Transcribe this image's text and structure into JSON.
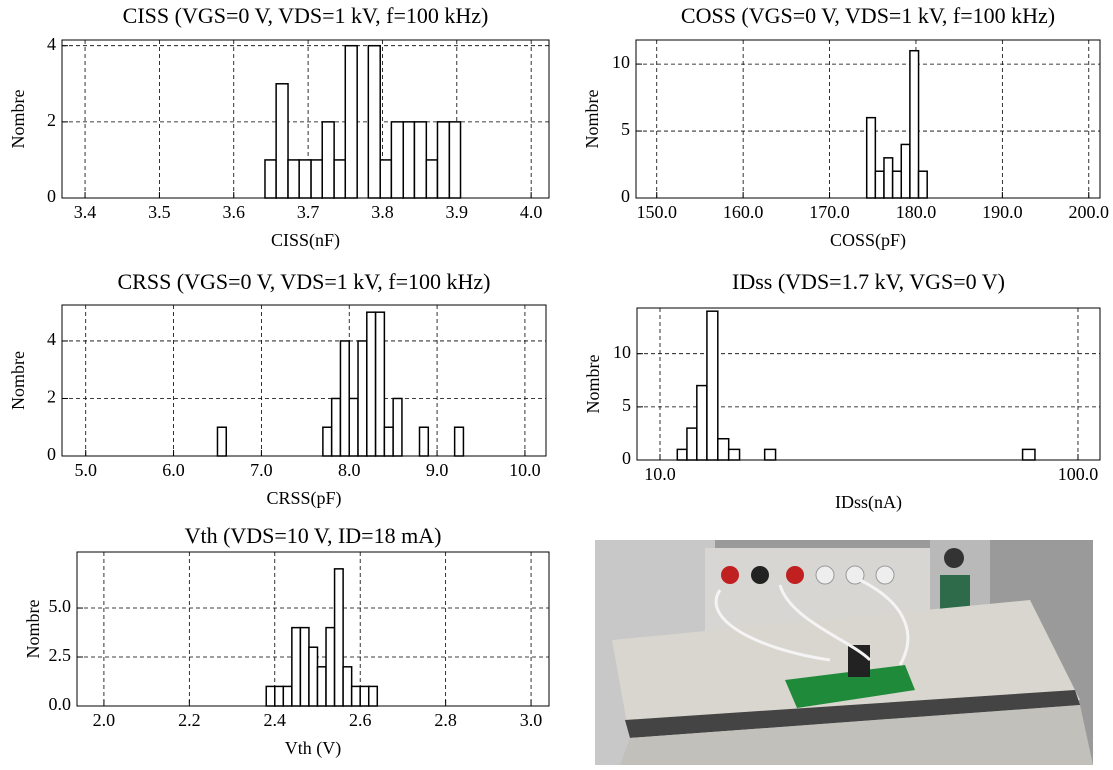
{
  "chart_data": [
    {
      "type": "histogram",
      "title": "CISS (VGS=0 V, VDS=1 kV, f=100 kHz)",
      "xlabel": "CISS(nF)",
      "ylabel": "Nombre",
      "bins": [
        3.642,
        3.657,
        3.673,
        3.688,
        3.704,
        3.719,
        3.735,
        3.75,
        3.766,
        3.781,
        3.797,
        3.812,
        3.828,
        3.843,
        3.859,
        3.874,
        3.89,
        3.905
      ],
      "values": [
        1,
        3,
        1,
        1,
        1,
        2,
        1,
        4,
        0,
        4,
        1,
        2,
        2,
        2,
        1,
        2,
        2
      ],
      "xlim": [
        3.369,
        4.024
      ],
      "xticks": [
        3.4,
        3.5,
        3.6,
        3.7,
        3.8,
        3.9,
        {
          "value": 4.0,
          "label": "4.0"
        }
      ],
      "ylim": [
        0,
        4.15
      ],
      "yticks": [
        0,
        2,
        4
      ],
      "grid": true,
      "color": "#000000"
    },
    {
      "type": "histogram",
      "title": "COSS (VGS=0 V, VDS=1 kV, f=100 kHz)",
      "xlabel": "COSS(pF)",
      "ylabel": "Nombre",
      "bins": [
        174.3,
        175.3,
        176.3,
        177.3,
        178.3,
        179.3,
        180.3,
        181.3
      ],
      "values": [
        6,
        2,
        3,
        2,
        4,
        11,
        2
      ],
      "xlim": [
        147.6,
        201.3
      ],
      "xticks": [
        {
          "value": 150,
          "label": "150.0"
        },
        {
          "value": 160,
          "label": "160.0"
        },
        {
          "value": 170,
          "label": "170.0"
        },
        {
          "value": 180,
          "label": "180.0"
        },
        {
          "value": 190,
          "label": "190.0"
        },
        {
          "value": 200,
          "label": "200.0"
        }
      ],
      "ylim": [
        0,
        11.8
      ],
      "yticks": [
        0,
        5,
        10
      ],
      "grid": true,
      "color": "#000000"
    },
    {
      "type": "histogram",
      "title": "CRSS (VGS=0 V, VDS=1 kV, f=100 kHz)",
      "xlabel": "CRSS(pF)",
      "ylabel": "Nombre",
      "bins": [
        6.5,
        6.6,
        6.7,
        6.8,
        6.9,
        7.0,
        7.1,
        7.2,
        7.3,
        7.4,
        7.5,
        7.6,
        7.7,
        7.8,
        7.9,
        8.0,
        8.1,
        8.2,
        8.3,
        8.4,
        8.5,
        8.6,
        8.7,
        8.8,
        8.9,
        9.0,
        9.1,
        9.2,
        9.3,
        9.4
      ],
      "values": [
        1,
        0,
        0,
        0,
        0,
        0,
        0,
        0,
        0,
        0,
        0,
        0,
        1,
        2,
        4,
        2,
        4,
        5,
        5,
        1,
        2,
        0,
        0,
        1,
        0,
        0,
        0,
        1,
        0
      ],
      "xlim": [
        4.73,
        10.24
      ],
      "xticks": [
        {
          "value": 5,
          "label": "5.0"
        },
        {
          "value": 6,
          "label": "6.0"
        },
        {
          "value": 7,
          "label": "7.0"
        },
        {
          "value": 8,
          "label": "8.0"
        },
        {
          "value": 9,
          "label": "9.0"
        },
        {
          "value": 10,
          "label": "10.0"
        }
      ],
      "ylim": [
        0,
        5.25
      ],
      "yticks": [
        0,
        2,
        4
      ],
      "grid": true,
      "color": "#000000"
    },
    {
      "type": "histogram",
      "title": "IDss (VDS=1.7 kV, VGS=0 V)",
      "xlabel": "IDss(nA)",
      "ylabel": "Nombre",
      "bins": [
        11.0,
        11.6,
        12.25,
        12.95,
        13.75,
        14.6,
        15.5,
        17.8,
        18.9,
        73.7,
        78.9
      ],
      "values": [
        1,
        3,
        7,
        14,
        2,
        1,
        0,
        1,
        0,
        1
      ],
      "xlim": [
        8.81,
        112.9
      ],
      "xticks": [
        {
          "value": 10,
          "label": "10.0"
        },
        {
          "value": 100,
          "label": "100.0"
        }
      ],
      "log_x": true,
      "ylim": [
        0,
        14.3
      ],
      "yticks": [
        0,
        5,
        10
      ],
      "grid": true,
      "color": "#000000"
    },
    {
      "type": "histogram",
      "title": "Vth (VDS=10 V, ID=18 mA)",
      "xlabel": "Vth (V)",
      "ylabel": "Nombre",
      "bins": [
        2.38,
        2.4,
        2.42,
        2.44,
        2.46,
        2.48,
        2.5,
        2.52,
        2.54,
        2.56,
        2.58,
        2.6,
        2.62,
        2.64
      ],
      "values": [
        1,
        1,
        1,
        4,
        4,
        3,
        2,
        4,
        7,
        2,
        1,
        1,
        1
      ],
      "xlim": [
        1.937,
        3.042
      ],
      "xticks": [
        {
          "value": 2,
          "label": "2.0"
        },
        2.2,
        2.4,
        2.6,
        2.8,
        {
          "value": 3,
          "label": "3.0"
        }
      ],
      "ylim": [
        0,
        7.86
      ],
      "yticks": [
        {
          "value": 0,
          "label": "0.0"
        },
        2.5,
        {
          "value": 5,
          "label": "5.0"
        }
      ],
      "grid": true,
      "color": "#000000"
    }
  ]
}
